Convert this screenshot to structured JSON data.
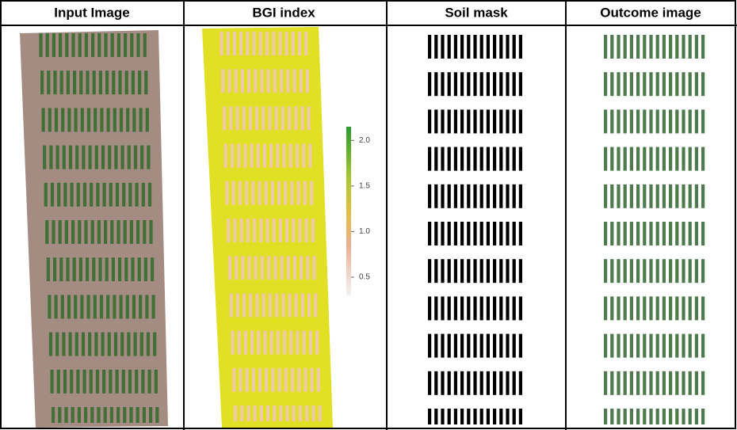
{
  "headers": [
    "Input Image",
    "BGI index",
    "Soil mask",
    "Outcome image"
  ],
  "colorbar": {
    "lim": [
      0.3,
      2.15
    ],
    "ticks": [
      0.5,
      {
        "value": 1.0,
        "label": "1.0"
      },
      1.5,
      {
        "value": 2.0,
        "label": "2.0"
      }
    ]
  }
}
